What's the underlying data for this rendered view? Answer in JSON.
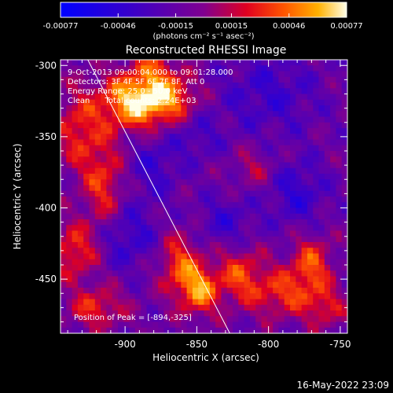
{
  "chart_data": {
    "type": "heatmap",
    "title": "Reconstructed RHESSI Image",
    "xlabel": "Heliocentric X (arcsec)",
    "ylabel": "Heliocentric Y (arcsec)",
    "xlim": [
      -945,
      -745
    ],
    "ylim": [
      -488,
      -296
    ],
    "x_ticks": [
      {
        "value": -900,
        "label": "-900"
      },
      {
        "value": -850,
        "label": "-850"
      },
      {
        "value": -800,
        "label": "-800"
      },
      {
        "value": -750,
        "label": "-750"
      }
    ],
    "y_ticks": [
      {
        "value": -300,
        "label": "-300"
      },
      {
        "value": -350,
        "label": "-350"
      },
      {
        "value": -400,
        "label": "-400"
      },
      {
        "value": -450,
        "label": "-450"
      }
    ],
    "colorbar": {
      "range": [
        -0.00077,
        0.00077
      ],
      "ticks": [
        {
          "value": -0.00077,
          "label": "-0.00077"
        },
        {
          "value": -0.00046,
          "label": "-0.00046"
        },
        {
          "value": -0.00015,
          "label": "-0.00015"
        },
        {
          "value": 0.00015,
          "label": "0.00015"
        },
        {
          "value": 0.00046,
          "label": "0.00046"
        },
        {
          "value": 0.00077,
          "label": "0.00077"
        }
      ],
      "units_label": "(photons cm⁻² s⁻¹ asec⁻²)"
    },
    "annotations": {
      "time_range": "9-Oct-2013 09:00:04.000 to 09:01:28.000",
      "detectors": "Detectors: 3F 4F 5F 6F 7F 8F, Att 0",
      "energy_range": "Energy Range: 25.0 - 50.0 keV",
      "clean_counts": "Clean      Total counts: 2.24E+03",
      "peak_position": "Position of Peak = [-894,-325]"
    },
    "limb_line": [
      {
        "x": -926,
        "y": -296
      },
      {
        "x": -827,
        "y": -488
      }
    ],
    "hotspots": [
      {
        "x": -894,
        "y": -325,
        "value": 0.00077,
        "sx": 16,
        "sy": 14
      },
      {
        "x": -870,
        "y": -322,
        "value": 0.00055,
        "sx": 14,
        "sy": 12
      },
      {
        "x": -932,
        "y": -345,
        "value": 0.0004,
        "sx": 12,
        "sy": 20
      },
      {
        "x": -915,
        "y": -385,
        "value": 0.00042,
        "sx": 10,
        "sy": 22
      },
      {
        "x": -935,
        "y": -430,
        "value": 0.00045,
        "sx": 12,
        "sy": 14
      },
      {
        "x": -920,
        "y": -470,
        "value": 0.0004,
        "sx": 14,
        "sy": 10
      },
      {
        "x": -862,
        "y": -440,
        "value": 0.00048,
        "sx": 10,
        "sy": 16
      },
      {
        "x": -848,
        "y": -458,
        "value": 0.0006,
        "sx": 9,
        "sy": 12
      },
      {
        "x": -820,
        "y": -448,
        "value": 0.00046,
        "sx": 12,
        "sy": 14
      },
      {
        "x": -790,
        "y": -460,
        "value": 0.00042,
        "sx": 14,
        "sy": 12
      },
      {
        "x": -770,
        "y": -440,
        "value": 0.00048,
        "sx": 10,
        "sy": 14
      },
      {
        "x": -760,
        "y": -470,
        "value": 0.00035,
        "sx": 10,
        "sy": 10
      },
      {
        "x": -810,
        "y": -372,
        "value": 0.00022,
        "sx": 10,
        "sy": 10
      },
      {
        "x": -880,
        "y": -300,
        "value": 0.0003,
        "sx": 10,
        "sy": 8
      },
      {
        "x": -900,
        "y": -420,
        "value": -0.0003,
        "sx": 16,
        "sy": 16
      },
      {
        "x": -880,
        "y": -370,
        "value": -0.00025,
        "sx": 12,
        "sy": 16
      },
      {
        "x": -800,
        "y": -320,
        "value": -0.00025,
        "sx": 24,
        "sy": 20
      },
      {
        "x": -780,
        "y": -390,
        "value": -0.0003,
        "sx": 14,
        "sy": 16
      },
      {
        "x": -830,
        "y": -410,
        "value": -0.00025,
        "sx": 14,
        "sy": 12
      },
      {
        "x": -850,
        "y": -350,
        "value": -0.0002,
        "sx": 12,
        "sy": 12
      }
    ]
  },
  "footer": {
    "timestamp": "16-May-2022 23:09"
  }
}
